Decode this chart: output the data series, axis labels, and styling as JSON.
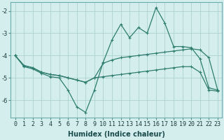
{
  "x": [
    0,
    1,
    2,
    3,
    4,
    5,
    6,
    7,
    8,
    9,
    10,
    11,
    12,
    13,
    14,
    15,
    16,
    17,
    18,
    19,
    20,
    21,
    22,
    23
  ],
  "line_top": [
    -4.0,
    -4.5,
    -4.6,
    -4.8,
    -4.95,
    -5.0,
    -5.55,
    -6.3,
    -6.55,
    -5.55,
    -4.3,
    -3.3,
    -2.6,
    -3.2,
    -2.75,
    -3.0,
    -1.85,
    -2.55,
    -3.6,
    -3.6,
    -3.65,
    -4.15,
    -5.45,
    -5.55
  ],
  "line_mid": [
    -4.0,
    -4.45,
    -4.55,
    -4.75,
    -4.85,
    -4.9,
    -5.0,
    -5.1,
    -5.2,
    -5.0,
    -4.35,
    -4.2,
    -4.1,
    -4.05,
    -4.0,
    -3.95,
    -3.9,
    -3.85,
    -3.8,
    -3.75,
    -3.7,
    -3.75,
    -4.1,
    -5.55
  ],
  "line_bot": [
    -4.0,
    -4.45,
    -4.55,
    -4.75,
    -4.85,
    -4.9,
    -5.0,
    -5.1,
    -5.2,
    -5.0,
    -4.95,
    -4.9,
    -4.85,
    -4.8,
    -4.75,
    -4.7,
    -4.65,
    -4.6,
    -4.55,
    -4.5,
    -4.5,
    -4.75,
    -5.55,
    -5.6
  ],
  "color": "#2e7d6e",
  "bg_color": "#d4eeee",
  "grid_color": "#a8cccc",
  "xlabel": "Humidex (Indice chaleur)",
  "xlim": [
    -0.5,
    23.5
  ],
  "ylim": [
    -6.8,
    -1.6
  ],
  "yticks": [
    -2,
    -3,
    -4,
    -5,
    -6
  ],
  "xticks": [
    0,
    1,
    2,
    3,
    4,
    5,
    6,
    7,
    8,
    9,
    10,
    11,
    12,
    13,
    14,
    15,
    16,
    17,
    18,
    19,
    20,
    21,
    22,
    23
  ],
  "xlabel_fontsize": 7,
  "tick_fontsize": 6
}
